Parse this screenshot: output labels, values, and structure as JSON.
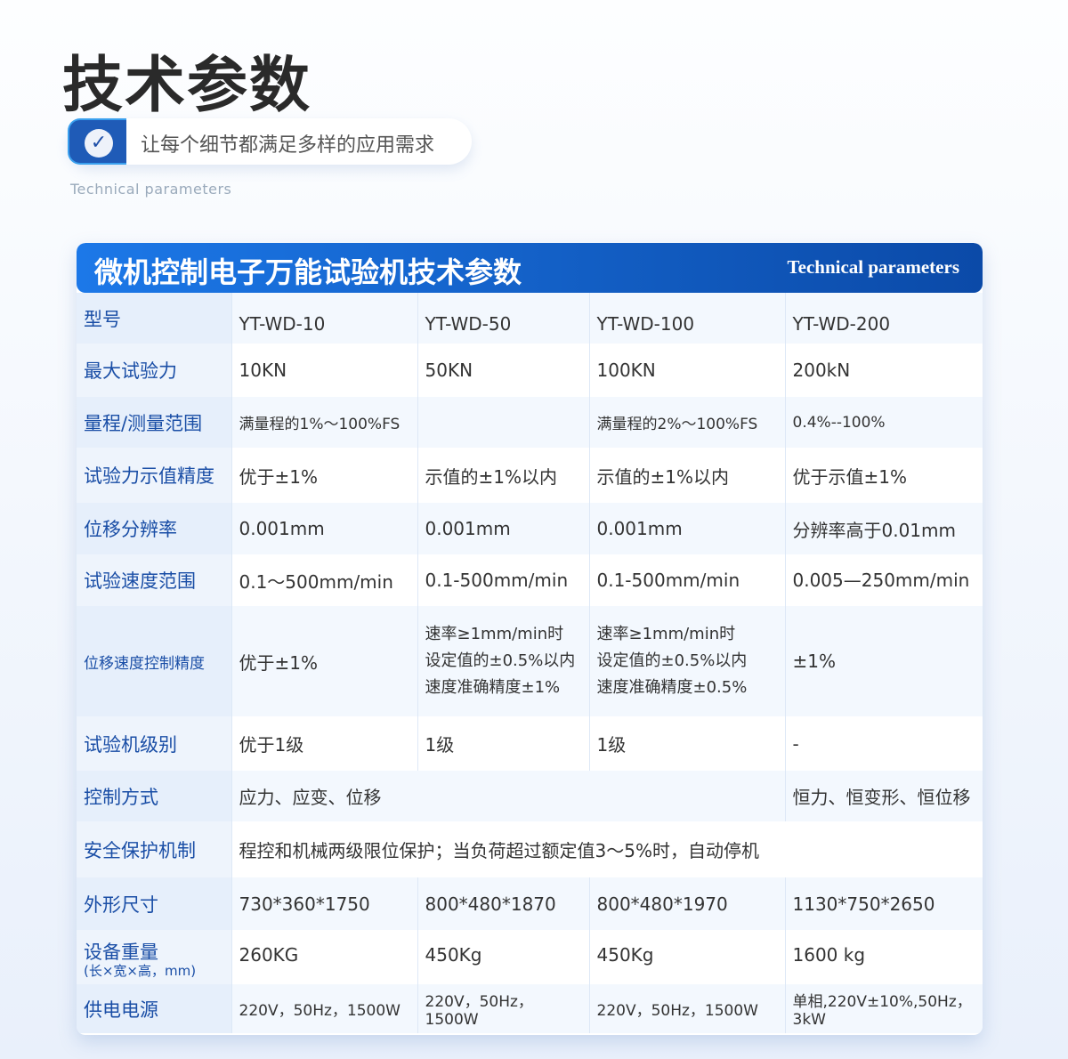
{
  "page": {
    "title": "技术参数",
    "tagline": "让每个细节都满足多样的应用需求",
    "subtitle": "Technical parameters",
    "check_icon": "check-circle-icon"
  },
  "table": {
    "title": "微机控制电子万能试验机技术参数",
    "title_en": "Technical parameters",
    "rows": [
      {
        "label": "型号",
        "cells": [
          "YT-WD-10",
          "YT-WD-50",
          "YT-WD-100",
          "YT-WD-200"
        ]
      },
      {
        "label": "最大试验力",
        "cells": [
          "10KN",
          "50KN",
          "100KN",
          "200kN"
        ]
      },
      {
        "label": "量程/测量范围",
        "cells": [
          "满量程的1%～100%FS",
          "",
          "满量程的2%～100%FS",
          "0.4%--100%"
        ]
      },
      {
        "label": "试验力示值精度",
        "cells": [
          "优于±1%",
          "示值的±1%以内",
          "示值的±1%以内",
          "优于示值±1%"
        ]
      },
      {
        "label": "位移分辨率",
        "cells": [
          "0.001mm",
          "0.001mm",
          "0.001mm",
          "分辨率高于0.01mm"
        ]
      },
      {
        "label": "试验速度范围",
        "cells": [
          "0.1～500mm/min",
          "0.1-500mm/min",
          "0.1-500mm/min",
          "0.005—250mm/min"
        ]
      },
      {
        "label": "位移速度控制精度",
        "cells": [
          "优于±1%",
          "速率≥1mm/min时\n设定值的±0.5%以内\n速度准确精度±1%",
          "速率≥1mm/min时\n设定值的±0.5%以内\n速度准确精度±0.5%",
          "±1%"
        ]
      },
      {
        "label": "试验机级别",
        "cells": [
          "优于1级",
          "1级",
          "1级",
          "-"
        ]
      },
      {
        "label": "控制方式",
        "cells": [
          "应力、应变、位移",
          "恒力、恒变形、恒位移"
        ]
      },
      {
        "label": "安全保护机制",
        "cells": [
          "程控和机械两级限位保护；当负荷超过额定值3～5%时，自动停机"
        ]
      },
      {
        "label": "外形尺寸",
        "cells": [
          "730*360*1750",
          "800*480*1870",
          "800*480*1970",
          "1130*750*2650"
        ]
      },
      {
        "label": "设备重量",
        "note": "(长×宽×高，mm)",
        "cells": [
          "260KG",
          "450Kg",
          "450Kg",
          "1600 kg"
        ]
      },
      {
        "label": "供电电源",
        "cells": [
          "220V，50Hz，1500W",
          "220V，50Hz，1500W",
          "220V，50Hz，1500W",
          "单相,220V±10%,50Hz，3kW"
        ]
      }
    ]
  }
}
